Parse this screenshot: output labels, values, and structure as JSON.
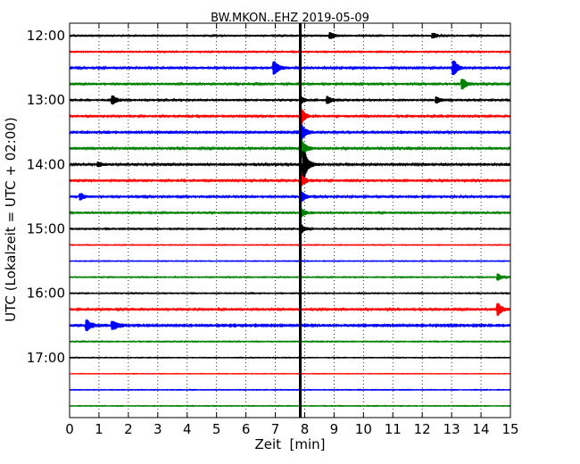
{
  "chart_data": {
    "type": "line",
    "title": "BW.MKON..EHZ 2019-05-09",
    "xlabel": "Zeit  [min]",
    "ylabel": "UTC (Lokalzeit = UTC + 02:00)",
    "xlim": [
      0,
      15
    ],
    "x_ticks": [
      "0",
      "1",
      "2",
      "3",
      "4",
      "5",
      "6",
      "7",
      "8",
      "9",
      "10",
      "11",
      "12",
      "13",
      "14",
      "15"
    ],
    "y_ticks": [
      {
        "label": "12:00",
        "trace": 0
      },
      {
        "label": "13:00",
        "trace": 4
      },
      {
        "label": "14:00",
        "trace": 8
      },
      {
        "label": "15:00",
        "trace": 12
      },
      {
        "label": "16:00",
        "trace": 16
      },
      {
        "label": "17:00",
        "trace": 20
      }
    ],
    "grid": "x-dotted",
    "trace_interval_minutes": 15,
    "trace_colors": [
      "#000000",
      "#ff0000",
      "#0000ff",
      "#008000"
    ],
    "traces": [
      {
        "start": "12:00",
        "noise": 0.5,
        "events": [
          {
            "t": 8.9,
            "amp": 3
          },
          {
            "t": 12.4,
            "amp": 2.5
          }
        ]
      },
      {
        "start": "12:15",
        "noise": 0.5,
        "events": []
      },
      {
        "start": "12:30",
        "noise": 0.8,
        "events": [
          {
            "t": 7.0,
            "amp": 6
          },
          {
            "t": 13.1,
            "amp": 7
          }
        ]
      },
      {
        "start": "12:45",
        "noise": 0.7,
        "events": [
          {
            "t": 13.4,
            "amp": 5
          }
        ]
      },
      {
        "start": "13:00",
        "noise": 0.6,
        "events": [
          {
            "t": 1.5,
            "amp": 4
          },
          {
            "t": 7.9,
            "amp": 3
          },
          {
            "t": 8.8,
            "amp": 3.5
          },
          {
            "t": 12.5,
            "amp": 3
          }
        ]
      },
      {
        "start": "13:15",
        "noise": 0.7,
        "events": [
          {
            "t": 7.9,
            "amp": 8
          }
        ]
      },
      {
        "start": "13:30",
        "noise": 1.0,
        "events": [
          {
            "t": 7.9,
            "amp": 8
          }
        ]
      },
      {
        "start": "13:45",
        "noise": 0.8,
        "events": [
          {
            "t": 7.9,
            "amp": 10
          }
        ]
      },
      {
        "start": "14:00",
        "noise": 0.8,
        "events": [
          {
            "t": 8.0,
            "amp": 14
          },
          {
            "t": 1.0,
            "amp": 2
          }
        ]
      },
      {
        "start": "14:15",
        "noise": 0.7,
        "events": [
          {
            "t": 7.9,
            "amp": 6
          }
        ]
      },
      {
        "start": "14:30",
        "noise": 0.7,
        "events": [
          {
            "t": 0.4,
            "amp": 3
          },
          {
            "t": 7.9,
            "amp": 5
          }
        ]
      },
      {
        "start": "14:45",
        "noise": 0.6,
        "events": [
          {
            "t": 7.9,
            "amp": 4
          }
        ]
      },
      {
        "start": "15:00",
        "noise": 0.5,
        "events": [
          {
            "t": 7.9,
            "amp": 4
          }
        ]
      },
      {
        "start": "15:15",
        "noise": 0.3,
        "events": []
      },
      {
        "start": "15:30",
        "noise": 0.3,
        "events": []
      },
      {
        "start": "15:45",
        "noise": 0.4,
        "events": [
          {
            "t": 14.6,
            "amp": 3
          }
        ]
      },
      {
        "start": "16:00",
        "noise": 0.4,
        "events": []
      },
      {
        "start": "16:15",
        "noise": 0.7,
        "events": [
          {
            "t": 14.6,
            "amp": 6
          }
        ]
      },
      {
        "start": "16:30",
        "noise": 1.2,
        "events": [
          {
            "t": 0.6,
            "amp": 5
          },
          {
            "t": 1.5,
            "amp": 4
          }
        ]
      },
      {
        "start": "16:45",
        "noise": 0.4,
        "events": []
      },
      {
        "start": "17:00",
        "noise": 0.3,
        "events": []
      },
      {
        "start": "17:15",
        "noise": 0.2,
        "events": []
      },
      {
        "start": "17:30",
        "noise": 0.3,
        "events": []
      },
      {
        "start": "17:45",
        "noise": 0.3,
        "events": []
      }
    ],
    "marker": {
      "x": 7.85,
      "color": "#000000"
    }
  }
}
